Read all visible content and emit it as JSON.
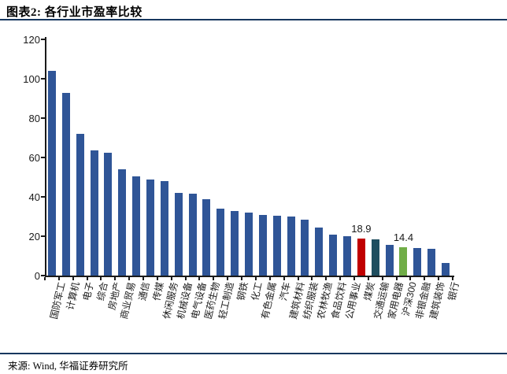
{
  "header": {
    "title": "图表2: 各行业市盈率比较"
  },
  "footer": {
    "source": "来源: Wind, 华福证券研究所"
  },
  "colors": {
    "divider": "#17375E",
    "axis": "#1a1a1a",
    "bar_default": "#2F5597",
    "bar_red": "#C00000",
    "bar_teal": "#1F4E5F",
    "bar_green": "#70AD47"
  },
  "chart_data": {
    "type": "bar",
    "title": "各行业市盈率比较",
    "xlabel": "",
    "ylabel": "",
    "ylim": [
      0,
      120
    ],
    "yticks": [
      0,
      20,
      40,
      60,
      80,
      100,
      120
    ],
    "grid": false,
    "legend": false,
    "categories": [
      "国防军工",
      "计算机",
      "电子",
      "综合",
      "房地产",
      "商业贸易",
      "通信",
      "传媒",
      "休闲服务",
      "机械设备",
      "电气设备",
      "医药生物",
      "轻工制造",
      "钢铁",
      "化工",
      "有色金属",
      "汽车",
      "建筑材料",
      "纺织服装",
      "农林牧渔",
      "食品饮料",
      "公用事业",
      "煤炭",
      "交通运输",
      "家用电器",
      "沪深300",
      "非银金融",
      "建筑装饰",
      "银行"
    ],
    "values": [
      104,
      93,
      72,
      63.5,
      62.5,
      54,
      50.5,
      49,
      48,
      42,
      41.5,
      39,
      34,
      33,
      32,
      31,
      30.5,
      30,
      28.5,
      24.5,
      21,
      20,
      18.9,
      18.5,
      15.5,
      14.4,
      14,
      13.5,
      6.5
    ],
    "bar_colors": [
      "#2F5597",
      "#2F5597",
      "#2F5597",
      "#2F5597",
      "#2F5597",
      "#2F5597",
      "#2F5597",
      "#2F5597",
      "#2F5597",
      "#2F5597",
      "#2F5597",
      "#2F5597",
      "#2F5597",
      "#2F5597",
      "#2F5597",
      "#2F5597",
      "#2F5597",
      "#2F5597",
      "#2F5597",
      "#2F5597",
      "#2F5597",
      "#2F5597",
      "#C00000",
      "#1F4E5F",
      "#2F5597",
      "#70AD47",
      "#2F5597",
      "#2F5597",
      "#2F5597"
    ],
    "annotations": [
      {
        "index": 22,
        "label": "18.9"
      },
      {
        "index": 25,
        "label": "14.4"
      }
    ]
  }
}
